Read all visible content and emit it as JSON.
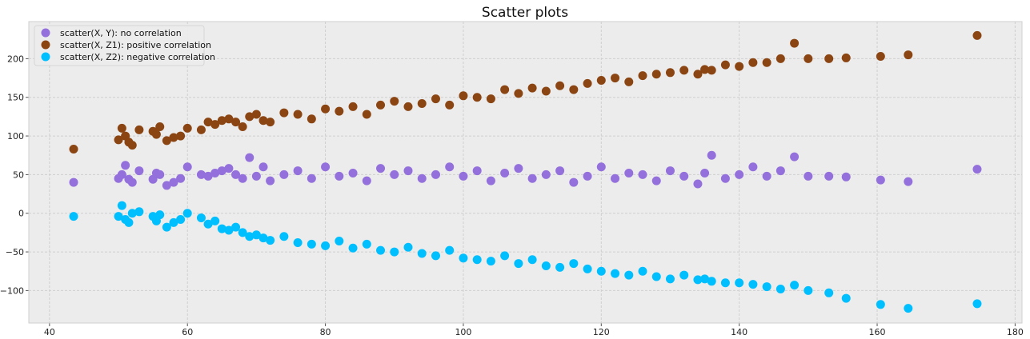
{
  "chart_data": {
    "type": "scatter",
    "title": "Scatter plots",
    "xlabel": "",
    "ylabel": "",
    "xlim": [
      37,
      181
    ],
    "ylim": [
      -142,
      248
    ],
    "xticks": [
      40,
      60,
      80,
      100,
      120,
      140,
      160,
      180
    ],
    "yticks": [
      -100,
      -50,
      0,
      50,
      100,
      150,
      200
    ],
    "grid": true,
    "legend_position": "top-left",
    "x": [
      43.5,
      50,
      50.5,
      51,
      51.5,
      52,
      53,
      55,
      55.5,
      56,
      57,
      58,
      59,
      60,
      62,
      63,
      64,
      65,
      66,
      67,
      68,
      69,
      70,
      71,
      72,
      74,
      76,
      78,
      80,
      82,
      84,
      86,
      88,
      90,
      92,
      94,
      96,
      98,
      100,
      102,
      104,
      106,
      108,
      110,
      112,
      114,
      116,
      118,
      120,
      122,
      124,
      126,
      128,
      130,
      132,
      134,
      135,
      136,
      138,
      140,
      142,
      144,
      146,
      148,
      150,
      153,
      155.5,
      160.5,
      164.5,
      174.5
    ],
    "series": [
      {
        "name": "scatter(X, Y): no correlation",
        "color": "#9370DB",
        "values": [
          40,
          45,
          50,
          62,
          44,
          40,
          55,
          44,
          52,
          50,
          36,
          40,
          45,
          60,
          50,
          48,
          52,
          55,
          58,
          50,
          45,
          72,
          48,
          60,
          42,
          50,
          55,
          45,
          60,
          48,
          52,
          42,
          58,
          50,
          55,
          45,
          50,
          60,
          48,
          55,
          42,
          52,
          58,
          45,
          50,
          55,
          40,
          48,
          60,
          45,
          52,
          50,
          42,
          55,
          48,
          38,
          52,
          75,
          45,
          50,
          60,
          48,
          55,
          73,
          48,
          48,
          47,
          43,
          41,
          57
        ]
      },
      {
        "name": "scatter(X, Z1): positive correlation",
        "color": "#8B4513",
        "values": [
          83,
          95,
          110,
          100,
          92,
          88,
          108,
          106,
          102,
          112,
          94,
          98,
          100,
          110,
          108,
          118,
          115,
          120,
          122,
          118,
          112,
          125,
          128,
          120,
          118,
          130,
          128,
          122,
          135,
          132,
          138,
          128,
          140,
          145,
          138,
          142,
          148,
          140,
          152,
          150,
          148,
          160,
          155,
          162,
          158,
          165,
          160,
          168,
          172,
          175,
          170,
          178,
          180,
          182,
          185,
          180,
          186,
          185,
          192,
          190,
          195,
          195,
          200,
          220,
          200,
          200,
          201,
          203,
          205,
          230
        ]
      },
      {
        "name": "scatter(X, Z2): negative correlation",
        "color": "#00BFFF",
        "values": [
          -4,
          -4,
          10,
          -8,
          -12,
          0,
          2,
          -4,
          -10,
          -2,
          -18,
          -12,
          -8,
          0,
          -6,
          -14,
          -10,
          -20,
          -22,
          -18,
          -25,
          -30,
          -28,
          -32,
          -35,
          -30,
          -38,
          -40,
          -42,
          -36,
          -45,
          -40,
          -48,
          -50,
          -44,
          -52,
          -55,
          -48,
          -58,
          -60,
          -62,
          -55,
          -65,
          -60,
          -68,
          -70,
          -65,
          -72,
          -75,
          -78,
          -80,
          -75,
          -82,
          -85,
          -80,
          -86,
          -85,
          -88,
          -90,
          -90,
          -92,
          -95,
          -98,
          -93,
          -100,
          -103,
          -110,
          -118,
          -123,
          -117
        ]
      }
    ]
  }
}
